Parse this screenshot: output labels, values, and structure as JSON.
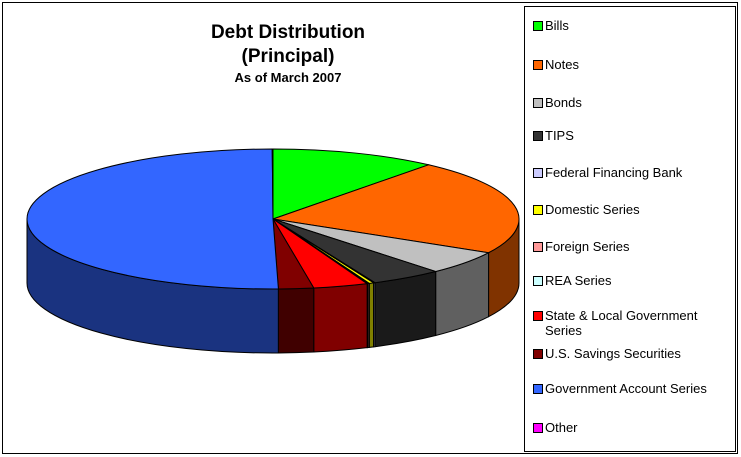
{
  "chart_data": {
    "type": "pie",
    "title": "Debt Distribution",
    "title_line2": "(Principal)",
    "subtitle": "As of March 2007",
    "legend_position": "right",
    "start_angle_deg": 0,
    "slices": [
      {
        "label": "Bills",
        "value": 10.9,
        "color": "#00ff00"
      },
      {
        "label": "Notes",
        "value": 22.1,
        "color": "#ff6600"
      },
      {
        "label": "Bonds",
        "value": 5.5,
        "color": "#c0c0c0"
      },
      {
        "label": "TIPS",
        "value": 4.7,
        "color": "#333333"
      },
      {
        "label": "Federal Financing Bank",
        "value": 0.1,
        "color": "#ccccff"
      },
      {
        "label": "Domestic Series",
        "value": 0.3,
        "color": "#ffff00"
      },
      {
        "label": "Foreign Series",
        "value": 0.1,
        "color": "#ff9999"
      },
      {
        "label": "REA Series",
        "value": 0.05,
        "color": "#ccffff"
      },
      {
        "label": "State & Local Government Series",
        "value": 3.6,
        "color": "#ff0000"
      },
      {
        "label": "U.S. Savings Securities",
        "value": 2.3,
        "color": "#800000"
      },
      {
        "label": "Government Account Series",
        "value": 50.3,
        "color": "#3366ff"
      },
      {
        "label": "Other",
        "value": 0.05,
        "color": "#ff00ff"
      }
    ]
  }
}
